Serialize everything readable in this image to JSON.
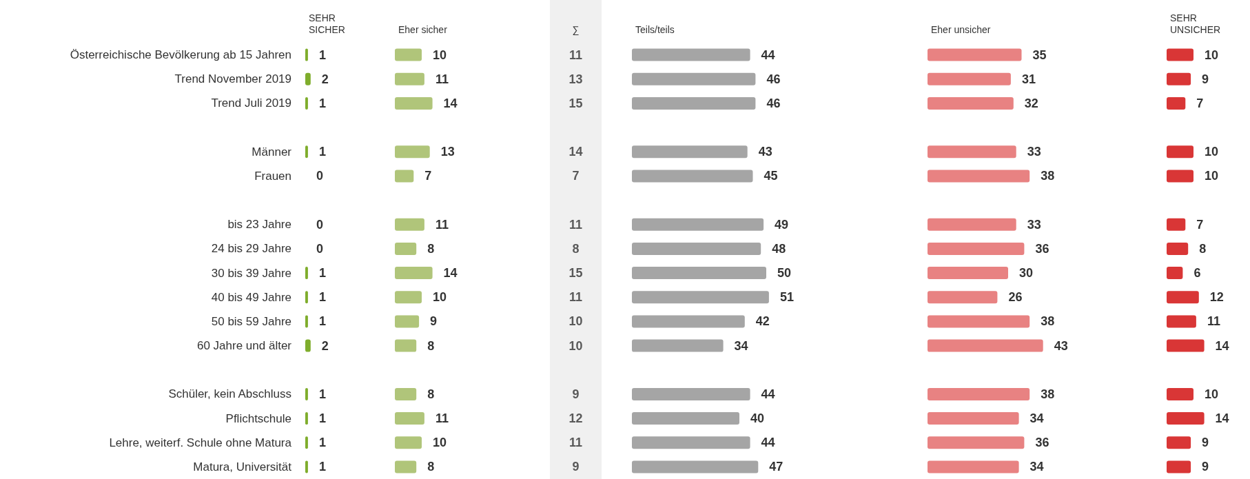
{
  "chart_data": [
    {
      "type": "bar",
      "orientation": "horizontal",
      "data_labels": true,
      "tick_labels": "y",
      "title": "SEHR\nSICHER",
      "color": "#7fad2c",
      "categories": [
        "Österreichische Bevölkerung ab 15 Jahren",
        "Trend November 2019",
        "Trend Juli 2019",
        null,
        "Männer",
        "Frauen",
        null,
        "bis 23 Jahre",
        "24 bis 29 Jahre",
        "30 bis 39 Jahre",
        "40 bis 49 Jahre",
        "50 bis 59 Jahre",
        "60 Jahre und älter",
        null,
        "Schüler, kein Abschluss",
        "Pflichtschule",
        "Lehre, weiterf. Schule ohne Matura",
        "Matura, Universität"
      ],
      "values": [
        1,
        2,
        1,
        null,
        1,
        0,
        null,
        0,
        0,
        1,
        1,
        1,
        2,
        null,
        1,
        1,
        1,
        1
      ]
    },
    {
      "type": "bar",
      "orientation": "horizontal",
      "data_labels": true,
      "title": "Eher sicher",
      "color": "#b0c57a",
      "values": [
        10,
        11,
        14,
        null,
        13,
        7,
        null,
        11,
        8,
        14,
        10,
        9,
        8,
        null,
        8,
        11,
        10,
        8
      ]
    },
    {
      "type": "other",
      "data_labels": true,
      "title": "∑",
      "values": [
        11,
        13,
        15,
        null,
        14,
        7,
        null,
        11,
        8,
        15,
        11,
        10,
        10,
        null,
        9,
        12,
        11,
        9
      ]
    },
    {
      "type": "bar",
      "orientation": "horizontal",
      "data_labels": true,
      "title": "Teils/teils",
      "color": "#a5a5a5",
      "values": [
        44,
        46,
        46,
        null,
        43,
        45,
        null,
        49,
        48,
        50,
        51,
        42,
        34,
        null,
        44,
        40,
        44,
        47
      ]
    },
    {
      "type": "bar",
      "orientation": "horizontal",
      "data_labels": true,
      "title": "Eher unsicher",
      "color": "#e88282",
      "values": [
        35,
        31,
        32,
        null,
        33,
        38,
        null,
        33,
        36,
        30,
        26,
        38,
        43,
        null,
        38,
        34,
        36,
        34
      ]
    },
    {
      "type": "bar",
      "orientation": "horizontal",
      "data_labels": true,
      "title": "SEHR\nUNSICHER",
      "color": "#d93636",
      "values": [
        10,
        9,
        7,
        null,
        10,
        10,
        null,
        7,
        8,
        6,
        12,
        11,
        14,
        null,
        10,
        14,
        9,
        9
      ]
    }
  ]
}
